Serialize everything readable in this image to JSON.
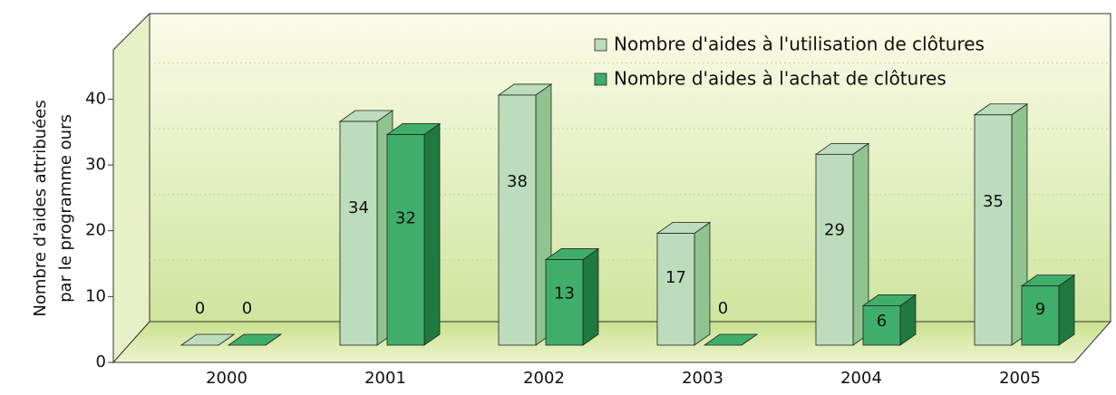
{
  "chart_data": {
    "type": "bar3d",
    "y_label": [
      "Nombre d'aides attribuées",
      "par le programme ours"
    ],
    "categories": [
      "2000",
      "2001",
      "2002",
      "2003",
      "2004",
      "2005"
    ],
    "series": [
      {
        "name": "Nombre d'aides à l'utilisation de clôtures",
        "color": "#bcdcbc",
        "side": "#8fc48f",
        "values": [
          0,
          34,
          38,
          17,
          29,
          35
        ]
      },
      {
        "name": "Nombre d'aides à l'achat de clôtures",
        "color": "#3fae6a",
        "side": "#1f7a3f",
        "values": [
          0,
          32,
          13,
          0,
          6,
          9
        ]
      }
    ],
    "ylim": [
      0,
      53
    ],
    "yticks": [
      0,
      10,
      20,
      30,
      40
    ],
    "grid": true,
    "legend": "top-right"
  }
}
